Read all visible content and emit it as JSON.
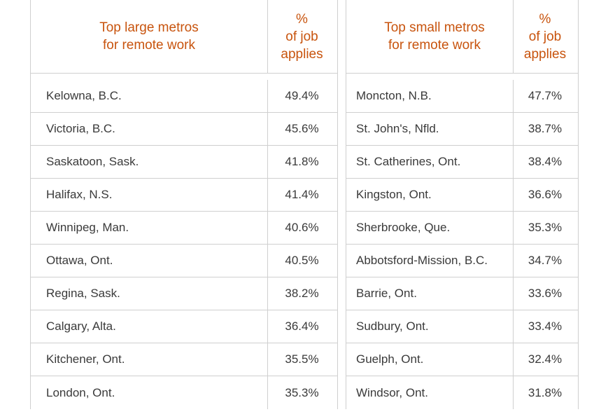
{
  "large": {
    "header_name": "Top large metros\nfor remote work",
    "header_value": "%\nof job\napplies",
    "rows": [
      {
        "city": "Kelowna, B.C.",
        "pct": "49.4%"
      },
      {
        "city": "Victoria, B.C.",
        "pct": "45.6%"
      },
      {
        "city": "Saskatoon, Sask.",
        "pct": "41.8%"
      },
      {
        "city": "Halifax, N.S.",
        "pct": "41.4%"
      },
      {
        "city": "Winnipeg, Man.",
        "pct": "40.6%"
      },
      {
        "city": "Ottawa, Ont.",
        "pct": "40.5%"
      },
      {
        "city": "Regina, Sask.",
        "pct": "38.2%"
      },
      {
        "city": "Calgary, Alta.",
        "pct": "36.4%"
      },
      {
        "city": "Kitchener, Ont.",
        "pct": "35.5%"
      },
      {
        "city": "London, Ont.",
        "pct": "35.3%"
      }
    ]
  },
  "small": {
    "header_name": "Top small metros\nfor remote work",
    "header_value": "%\nof job\napplies",
    "rows": [
      {
        "city": "Moncton, N.B.",
        "pct": "47.7%"
      },
      {
        "city": "St. John's, Nfld.",
        "pct": "38.7%"
      },
      {
        "city": "St. Catherines, Ont.",
        "pct": "38.4%"
      },
      {
        "city": "Kingston, Ont.",
        "pct": "36.6%"
      },
      {
        "city": "Sherbrooke, Que.",
        "pct": "35.3%"
      },
      {
        "city": "Abbotsford-Mission, B.C.",
        "pct": "34.7%"
      },
      {
        "city": "Barrie, Ont.",
        "pct": "33.6%"
      },
      {
        "city": "Sudbury, Ont.",
        "pct": "33.4%"
      },
      {
        "city": "Guelph, Ont.",
        "pct": "32.4%"
      },
      {
        "city": "Windsor, Ont.",
        "pct": "31.8%"
      }
    ]
  },
  "colors": {
    "header_text": "#c8540e",
    "body_text": "#3a3a3a",
    "rule": "#cfcfcf"
  }
}
